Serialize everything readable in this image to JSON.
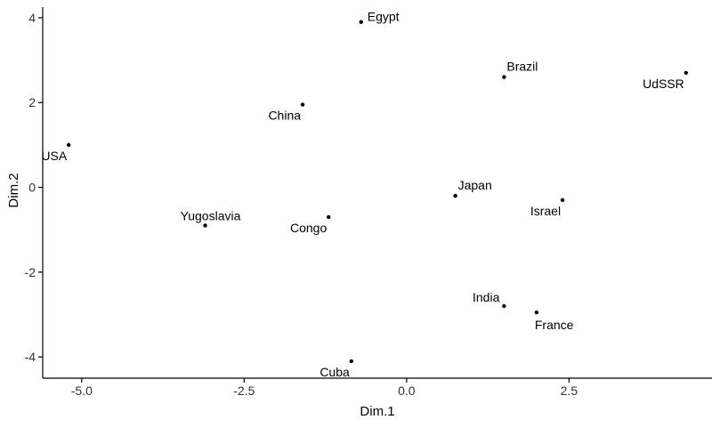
{
  "chart_data": {
    "type": "scatter",
    "title": "",
    "xlabel": "Dim.1",
    "ylabel": "Dim.2",
    "xlim": [
      -5.6,
      4.7
    ],
    "ylim": [
      -4.5,
      4.25
    ],
    "x_ticks": [
      -5.0,
      -2.5,
      0.0,
      2.5
    ],
    "x_tick_labels": [
      "-5.0",
      "-2.5",
      "0.0",
      "2.5"
    ],
    "y_ticks": [
      -4,
      -2,
      0,
      2,
      4
    ],
    "y_tick_labels": [
      "-4",
      "-2",
      "0",
      "2",
      "4"
    ],
    "grid": false,
    "point_color": "#000000",
    "points": [
      {
        "label": "Egypt",
        "x": -0.7,
        "y": 3.9,
        "label_pos": "right"
      },
      {
        "label": "Brazil",
        "x": 1.5,
        "y": 2.6,
        "label_pos": "above-right"
      },
      {
        "label": "UdSSR",
        "x": 4.3,
        "y": 2.7,
        "label_pos": "below-left"
      },
      {
        "label": "China",
        "x": -1.6,
        "y": 1.95,
        "label_pos": "below-left"
      },
      {
        "label": "USA",
        "x": -5.2,
        "y": 1.0,
        "label_pos": "below-left"
      },
      {
        "label": "Japan",
        "x": 0.75,
        "y": -0.2,
        "label_pos": "above-right"
      },
      {
        "label": "Israel",
        "x": 2.4,
        "y": -0.3,
        "label_pos": "below-left"
      },
      {
        "label": "Yugoslavia",
        "x": -3.1,
        "y": -0.9,
        "label_pos": "above"
      },
      {
        "label": "Congo",
        "x": -1.2,
        "y": -0.7,
        "label_pos": "below-left"
      },
      {
        "label": "India",
        "x": 1.5,
        "y": -2.8,
        "label_pos": "above-left"
      },
      {
        "label": "France",
        "x": 2.0,
        "y": -2.95,
        "label_pos": "below-right"
      },
      {
        "label": "Cuba",
        "x": -0.85,
        "y": -4.1,
        "label_pos": "below-left"
      }
    ]
  }
}
